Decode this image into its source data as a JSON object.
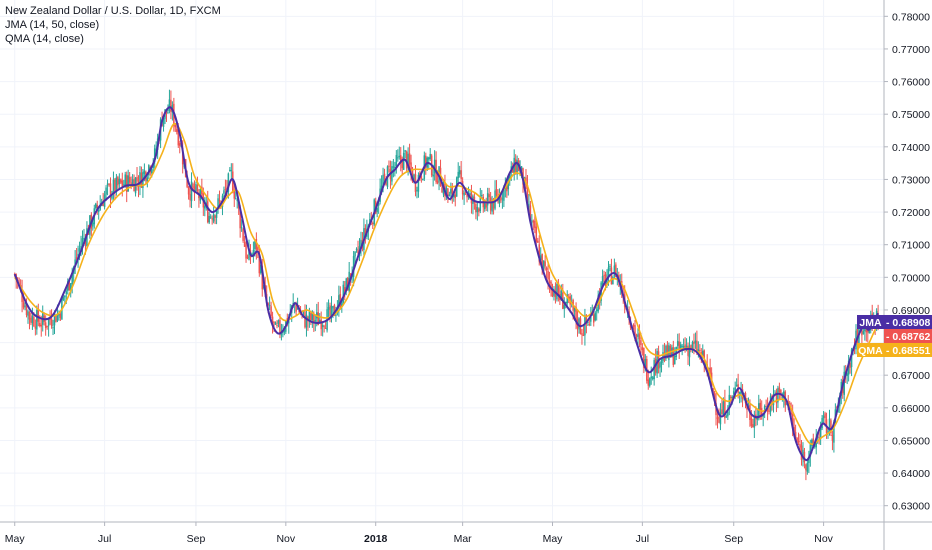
{
  "legend": {
    "symbol_line": "New Zealand Dollar / U.S. Dollar, 1D, FXCM",
    "jma_label": "JMA (14, 50, close)",
    "qma_label": "QMA (14, close)"
  },
  "price_tags": [
    {
      "label": "JMA",
      "value": "0.68908",
      "color": "#4a2ea5",
      "price": 0.68908
    },
    {
      "label": "",
      "value": "0.68762",
      "color": "#ef5350",
      "price": 0.68762
    },
    {
      "label": "QMA",
      "value": "0.68551",
      "color": "#f5b21b",
      "price": 0.68551
    }
  ],
  "chart_data": {
    "type": "candlestick",
    "title": "New Zealand Dollar / U.S. Dollar, 1D, FXCM",
    "xlabel": "",
    "ylabel": "",
    "ylim": [
      0.625,
      0.785
    ],
    "y_ticks": [
      "0.78000",
      "0.77000",
      "0.76000",
      "0.75000",
      "0.74000",
      "0.73000",
      "0.72000",
      "0.71000",
      "0.70000",
      "0.69000",
      "0.68000",
      "0.67000",
      "0.66000",
      "0.65000",
      "0.64000",
      "0.63000"
    ],
    "x_ticks": [
      "May",
      "Jul",
      "Sep",
      "Nov",
      "2018",
      "Mar",
      "May",
      "Jul",
      "Sep",
      "Nov"
    ],
    "x_tick_index": [
      0,
      61,
      123,
      184,
      245,
      304,
      365,
      426,
      488,
      549
    ],
    "x_range": [
      -10,
      590
    ],
    "grid": true,
    "colors": {
      "up": "#26a69a",
      "down": "#ef5350",
      "jma": "#4a2ea5",
      "qma": "#f5b21b"
    },
    "close_path": [
      [
        0,
        0.701
      ],
      [
        10,
        0.688
      ],
      [
        20,
        0.686
      ],
      [
        30,
        0.689
      ],
      [
        45,
        0.71
      ],
      [
        55,
        0.72
      ],
      [
        62,
        0.726
      ],
      [
        75,
        0.729
      ],
      [
        85,
        0.73
      ],
      [
        95,
        0.737
      ],
      [
        100,
        0.749
      ],
      [
        106,
        0.752
      ],
      [
        112,
        0.742
      ],
      [
        118,
        0.727
      ],
      [
        125,
        0.725
      ],
      [
        132,
        0.719
      ],
      [
        140,
        0.723
      ],
      [
        147,
        0.731
      ],
      [
        152,
        0.72
      ],
      [
        158,
        0.705
      ],
      [
        164,
        0.71
      ],
      [
        170,
        0.693
      ],
      [
        177,
        0.683
      ],
      [
        184,
        0.686
      ],
      [
        190,
        0.692
      ],
      [
        197,
        0.687
      ],
      [
        205,
        0.687
      ],
      [
        215,
        0.688
      ],
      [
        225,
        0.697
      ],
      [
        235,
        0.71
      ],
      [
        245,
        0.722
      ],
      [
        252,
        0.731
      ],
      [
        258,
        0.734
      ],
      [
        265,
        0.737
      ],
      [
        272,
        0.729
      ],
      [
        280,
        0.736
      ],
      [
        288,
        0.731
      ],
      [
        295,
        0.724
      ],
      [
        302,
        0.73
      ],
      [
        310,
        0.723
      ],
      [
        318,
        0.722
      ],
      [
        328,
        0.724
      ],
      [
        336,
        0.731
      ],
      [
        341,
        0.735
      ],
      [
        345,
        0.73
      ],
      [
        350,
        0.718
      ],
      [
        356,
        0.707
      ],
      [
        362,
        0.699
      ],
      [
        370,
        0.694
      ],
      [
        378,
        0.69
      ],
      [
        385,
        0.684
      ],
      [
        392,
        0.688
      ],
      [
        400,
        0.699
      ],
      [
        408,
        0.702
      ],
      [
        415,
        0.692
      ],
      [
        422,
        0.682
      ],
      [
        430,
        0.67
      ],
      [
        438,
        0.676
      ],
      [
        446,
        0.676
      ],
      [
        455,
        0.679
      ],
      [
        463,
        0.678
      ],
      [
        470,
        0.672
      ],
      [
        478,
        0.657
      ],
      [
        485,
        0.662
      ],
      [
        492,
        0.667
      ],
      [
        500,
        0.657
      ],
      [
        508,
        0.659
      ],
      [
        516,
        0.664
      ],
      [
        524,
        0.663
      ],
      [
        530,
        0.65
      ],
      [
        537,
        0.644
      ],
      [
        542,
        0.648
      ],
      [
        548,
        0.655
      ],
      [
        555,
        0.653
      ],
      [
        562,
        0.667
      ],
      [
        570,
        0.68
      ],
      [
        576,
        0.686
      ],
      [
        580,
        0.685
      ],
      [
        586,
        0.688
      ]
    ],
    "jma": [
      [
        0,
        0.701
      ],
      [
        8,
        0.692
      ],
      [
        15,
        0.688
      ],
      [
        25,
        0.688
      ],
      [
        35,
        0.697
      ],
      [
        45,
        0.708
      ],
      [
        55,
        0.72
      ],
      [
        65,
        0.725
      ],
      [
        75,
        0.728
      ],
      [
        85,
        0.729
      ],
      [
        95,
        0.736
      ],
      [
        100,
        0.748
      ],
      [
        106,
        0.752
      ],
      [
        112,
        0.744
      ],
      [
        118,
        0.729
      ],
      [
        126,
        0.725
      ],
      [
        134,
        0.72
      ],
      [
        142,
        0.724
      ],
      [
        148,
        0.73
      ],
      [
        154,
        0.719
      ],
      [
        160,
        0.707
      ],
      [
        166,
        0.707
      ],
      [
        172,
        0.69
      ],
      [
        178,
        0.683
      ],
      [
        184,
        0.685
      ],
      [
        190,
        0.692
      ],
      [
        196,
        0.688
      ],
      [
        205,
        0.686
      ],
      [
        215,
        0.688
      ],
      [
        225,
        0.696
      ],
      [
        235,
        0.709
      ],
      [
        245,
        0.721
      ],
      [
        252,
        0.73
      ],
      [
        258,
        0.733
      ],
      [
        265,
        0.736
      ],
      [
        272,
        0.729
      ],
      [
        280,
        0.735
      ],
      [
        288,
        0.731
      ],
      [
        295,
        0.724
      ],
      [
        302,
        0.729
      ],
      [
        310,
        0.724
      ],
      [
        318,
        0.723
      ],
      [
        328,
        0.724
      ],
      [
        336,
        0.732
      ],
      [
        341,
        0.735
      ],
      [
        345,
        0.73
      ],
      [
        350,
        0.717
      ],
      [
        356,
        0.706
      ],
      [
        362,
        0.698
      ],
      [
        370,
        0.694
      ],
      [
        378,
        0.689
      ],
      [
        384,
        0.685
      ],
      [
        392,
        0.689
      ],
      [
        400,
        0.698
      ],
      [
        408,
        0.701
      ],
      [
        415,
        0.691
      ],
      [
        422,
        0.68
      ],
      [
        430,
        0.671
      ],
      [
        438,
        0.675
      ],
      [
        446,
        0.676
      ],
      [
        455,
        0.678
      ],
      [
        463,
        0.677
      ],
      [
        470,
        0.671
      ],
      [
        478,
        0.658
      ],
      [
        485,
        0.66
      ],
      [
        492,
        0.666
      ],
      [
        500,
        0.658
      ],
      [
        508,
        0.658
      ],
      [
        516,
        0.664
      ],
      [
        524,
        0.662
      ],
      [
        530,
        0.65
      ],
      [
        537,
        0.644
      ],
      [
        542,
        0.648
      ],
      [
        548,
        0.655
      ],
      [
        555,
        0.654
      ],
      [
        562,
        0.667
      ],
      [
        570,
        0.679
      ],
      [
        576,
        0.685
      ],
      [
        580,
        0.684
      ],
      [
        586,
        0.689
      ]
    ],
    "qma": [
      [
        0,
        0.7
      ],
      [
        10,
        0.693
      ],
      [
        20,
        0.689
      ],
      [
        30,
        0.689
      ],
      [
        40,
        0.698
      ],
      [
        50,
        0.71
      ],
      [
        60,
        0.719
      ],
      [
        70,
        0.725
      ],
      [
        80,
        0.728
      ],
      [
        90,
        0.729
      ],
      [
        100,
        0.738
      ],
      [
        108,
        0.747
      ],
      [
        115,
        0.742
      ],
      [
        122,
        0.731
      ],
      [
        130,
        0.725
      ],
      [
        138,
        0.721
      ],
      [
        145,
        0.725
      ],
      [
        152,
        0.726
      ],
      [
        160,
        0.714
      ],
      [
        168,
        0.707
      ],
      [
        175,
        0.693
      ],
      [
        182,
        0.687
      ],
      [
        190,
        0.688
      ],
      [
        198,
        0.69
      ],
      [
        206,
        0.688
      ],
      [
        215,
        0.688
      ],
      [
        225,
        0.693
      ],
      [
        235,
        0.704
      ],
      [
        245,
        0.716
      ],
      [
        255,
        0.726
      ],
      [
        262,
        0.731
      ],
      [
        270,
        0.733
      ],
      [
        278,
        0.733
      ],
      [
        286,
        0.733
      ],
      [
        294,
        0.728
      ],
      [
        302,
        0.728
      ],
      [
        312,
        0.726
      ],
      [
        322,
        0.723
      ],
      [
        332,
        0.727
      ],
      [
        340,
        0.732
      ],
      [
        348,
        0.728
      ],
      [
        356,
        0.714
      ],
      [
        364,
        0.702
      ],
      [
        372,
        0.696
      ],
      [
        380,
        0.691
      ],
      [
        388,
        0.688
      ],
      [
        396,
        0.692
      ],
      [
        404,
        0.699
      ],
      [
        412,
        0.698
      ],
      [
        420,
        0.689
      ],
      [
        428,
        0.679
      ],
      [
        436,
        0.676
      ],
      [
        444,
        0.677
      ],
      [
        452,
        0.678
      ],
      [
        460,
        0.678
      ],
      [
        468,
        0.675
      ],
      [
        476,
        0.665
      ],
      [
        484,
        0.662
      ],
      [
        492,
        0.664
      ],
      [
        500,
        0.661
      ],
      [
        508,
        0.659
      ],
      [
        516,
        0.662
      ],
      [
        524,
        0.662
      ],
      [
        532,
        0.655
      ],
      [
        540,
        0.649
      ],
      [
        548,
        0.651
      ],
      [
        556,
        0.654
      ],
      [
        564,
        0.662
      ],
      [
        572,
        0.672
      ],
      [
        580,
        0.68
      ],
      [
        586,
        0.686
      ]
    ]
  }
}
